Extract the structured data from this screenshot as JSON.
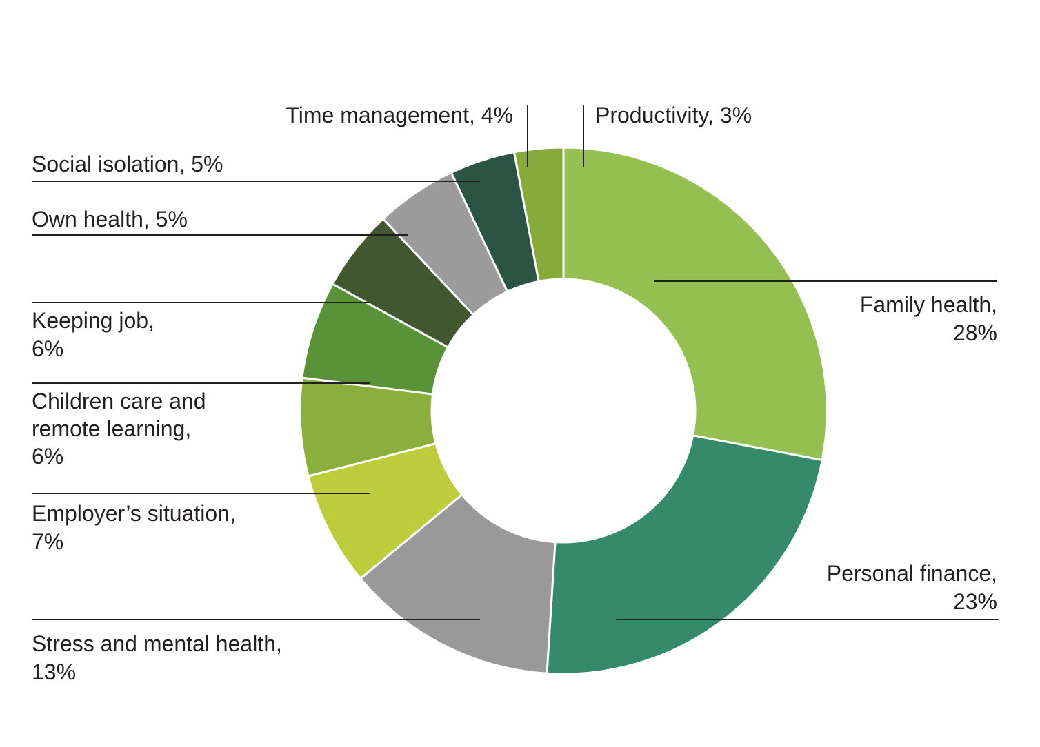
{
  "chart_data": {
    "type": "pie",
    "title": "",
    "inner_radius_ratio": 0.5,
    "start_angle_deg": 0,
    "direction": "clockwise",
    "slices": [
      {
        "name": "Family health",
        "value": 28,
        "value_label": "28%",
        "label_lines": [
          "Family health,",
          "28%"
        ],
        "color": "#93c050"
      },
      {
        "name": "Personal finance",
        "value": 23,
        "value_label": "23%",
        "label_lines": [
          "Personal finance,",
          "23%"
        ],
        "color": "#348a6b"
      },
      {
        "name": "Stress and mental health",
        "value": 13,
        "value_label": "13%",
        "label_lines": [
          "Stress and mental health,",
          "13%"
        ],
        "color": "#999999"
      },
      {
        "name": "Employer’s situation",
        "value": 7,
        "value_label": "7%",
        "label_lines": [
          "Employer’s situation,",
          "7%"
        ],
        "color": "#bdcc3a"
      },
      {
        "name": "Children care  and remote learning",
        "value": 6,
        "value_label": "6%",
        "label_lines": [
          "Children care  and",
          "remote learning,",
          "6%"
        ],
        "color": "#8aaf3c"
      },
      {
        "name": "Keeping job",
        "value": 6,
        "value_label": "6%",
        "label_lines": [
          "Keeping job,",
          "6%"
        ],
        "color": "#589239"
      },
      {
        "name": "Own health",
        "value": 5,
        "value_label": "5%",
        "label_lines": [
          "Own health, 5%"
        ],
        "color": "#40572f"
      },
      {
        "name": "Social isolation",
        "value": 5,
        "value_label": "5%",
        "label_lines": [
          "Social isolation, 5%"
        ],
        "color": "#9b9b9b"
      },
      {
        "name": "Time management",
        "value": 4,
        "value_label": "4%",
        "label_lines": [
          "Time management, 4%"
        ],
        "color": "#2b5444"
      },
      {
        "name": "Productivity",
        "value": 3,
        "value_label": "3%",
        "label_lines": [
          "Productivity, 3%"
        ],
        "color": "#86ab3a"
      }
    ]
  }
}
